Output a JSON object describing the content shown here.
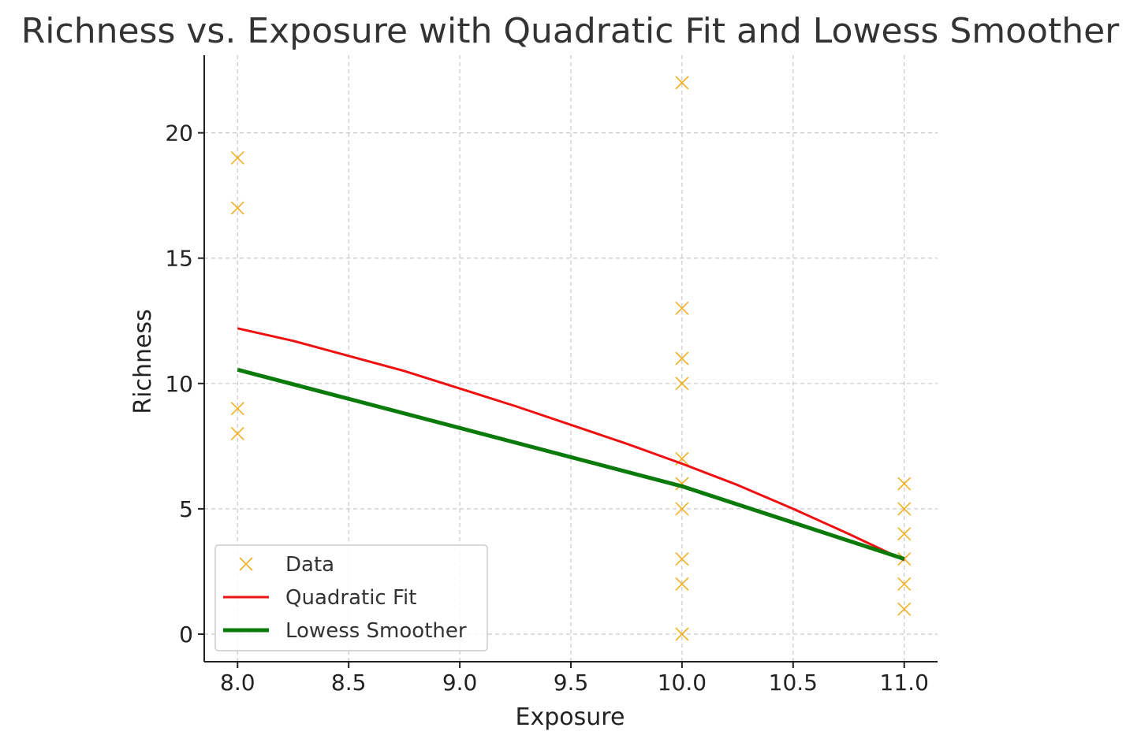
{
  "chart_data": {
    "type": "scatter",
    "title": "Richness vs. Exposure with Quadratic Fit and Lowess Smoother",
    "xlabel": "Exposure",
    "ylabel": "Richness",
    "xlim": [
      7.85,
      11.15
    ],
    "ylim": [
      -1.1,
      23.1
    ],
    "xticks": [
      "8.0",
      "8.5",
      "9.0",
      "9.5",
      "10.0",
      "10.5",
      "11.0"
    ],
    "yticks": [
      "0",
      "5",
      "10",
      "15",
      "20"
    ],
    "grid": true,
    "legend_position": "lower-left",
    "series": [
      {
        "name": "Data",
        "kind": "scatter",
        "marker": "x",
        "color": "#f0b020",
        "points": [
          [
            8,
            19
          ],
          [
            8,
            17
          ],
          [
            8,
            9
          ],
          [
            8,
            8
          ],
          [
            10,
            22
          ],
          [
            10,
            13
          ],
          [
            10,
            11
          ],
          [
            10,
            10
          ],
          [
            10,
            7
          ],
          [
            10,
            6
          ],
          [
            10,
            5
          ],
          [
            10,
            3
          ],
          [
            10,
            2
          ],
          [
            10,
            0
          ],
          [
            11,
            6
          ],
          [
            11,
            5
          ],
          [
            11,
            4
          ],
          [
            11,
            3
          ],
          [
            11,
            2
          ],
          [
            11,
            1
          ]
        ]
      },
      {
        "name": "Quadratic Fit",
        "kind": "line",
        "color": "#ee1111",
        "points": [
          [
            8.0,
            12.2
          ],
          [
            8.25,
            11.7
          ],
          [
            8.5,
            11.1
          ],
          [
            8.75,
            10.5
          ],
          [
            9.0,
            9.8
          ],
          [
            9.25,
            9.1
          ],
          [
            9.5,
            8.35
          ],
          [
            9.75,
            7.6
          ],
          [
            10.0,
            6.8
          ],
          [
            10.25,
            5.95
          ],
          [
            10.5,
            5.0
          ],
          [
            10.75,
            4.0
          ],
          [
            11.0,
            2.95
          ]
        ]
      },
      {
        "name": "Lowess Smoother",
        "kind": "line",
        "color": "#0a7a0a",
        "points": [
          [
            8.0,
            10.55
          ],
          [
            10.0,
            5.9
          ],
          [
            11.0,
            3.0
          ]
        ]
      }
    ]
  }
}
